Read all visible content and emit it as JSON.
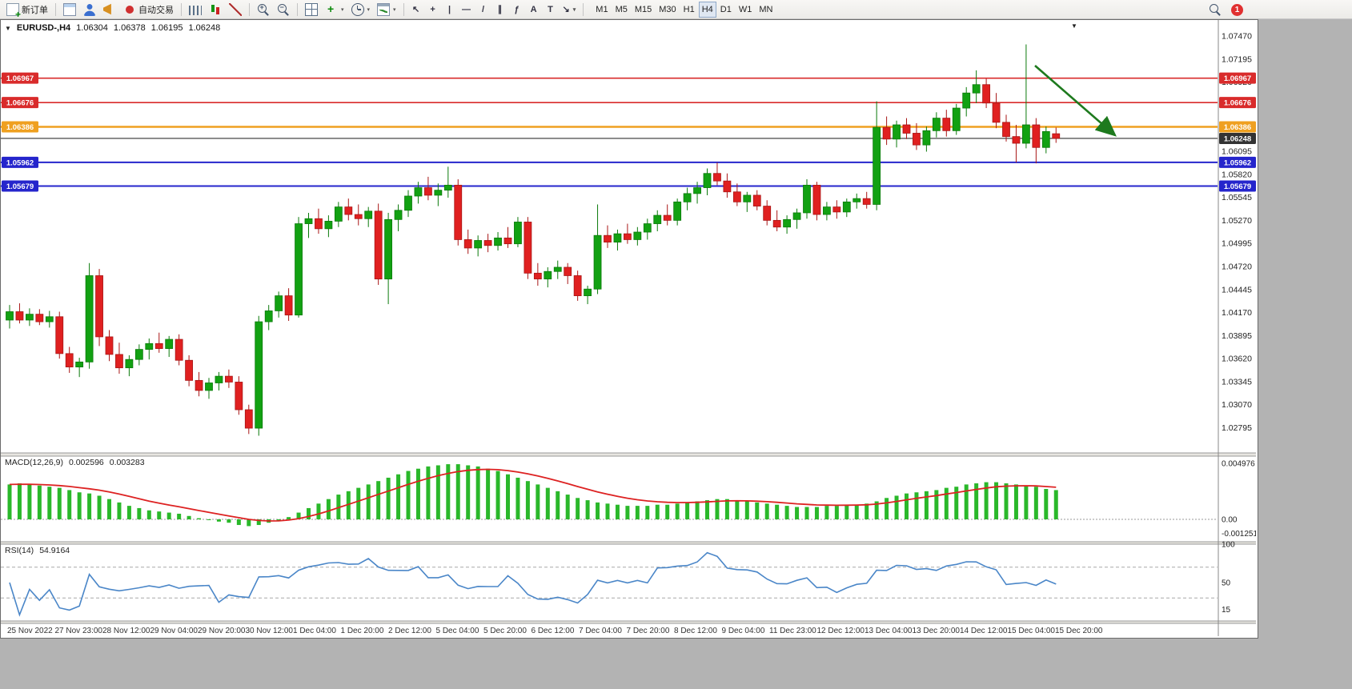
{
  "toolbar": {
    "new_order_label": "新订单",
    "autotrading_label": "自动交易",
    "drawing_tools": [
      {
        "name": "cursor",
        "glyph": "↖"
      },
      {
        "name": "crosshair",
        "glyph": "+"
      },
      {
        "name": "vertical-line",
        "glyph": "|"
      },
      {
        "name": "horizontal-line",
        "glyph": "—"
      },
      {
        "name": "trendline",
        "glyph": "/"
      },
      {
        "name": "channel",
        "glyph": "∥"
      },
      {
        "name": "fibonacci",
        "glyph": "ƒ"
      },
      {
        "name": "text",
        "glyph": "A"
      },
      {
        "name": "text-label",
        "glyph": "T"
      },
      {
        "name": "arrows",
        "glyph": "↘"
      }
    ],
    "timeframes": [
      "M1",
      "M5",
      "M15",
      "M30",
      "H1",
      "H4",
      "D1",
      "W1",
      "MN"
    ],
    "active_timeframe": "H4",
    "notification_count": "1"
  },
  "chart": {
    "title": "EURUSD-,H4",
    "ohlc": {
      "open": "1.06304",
      "high": "1.06378",
      "low": "1.06195",
      "close": "1.06248"
    },
    "colors": {
      "bull": "#12A112",
      "bull_border": "#0B7A0B",
      "bear": "#E02020",
      "bear_border": "#A81616",
      "macd_hist": "#2AB82A",
      "macd_signal": "#DD2222",
      "rsi_line": "#4A86C8",
      "arrow": "#1E7A1E",
      "badge_text": "#FFFFFF"
    },
    "price_axis": [
      "1.07470",
      "1.07195",
      "1.06920",
      "1.06645",
      "1.06370",
      "1.06095",
      "1.05820",
      "1.05545",
      "1.05270",
      "1.04995",
      "1.04720",
      "1.04445",
      "1.04170",
      "1.03895",
      "1.03620",
      "1.03345",
      "1.03070",
      "1.02795"
    ],
    "hlines": [
      {
        "label": "1.06967",
        "price": 1.06967,
        "color": "#D92B2B",
        "width": 1.6,
        "badges": "both"
      },
      {
        "label": "1.06676",
        "price": 1.06676,
        "color": "#D92B2B",
        "width": 1.6,
        "badges": "both"
      },
      {
        "label": "1.06386",
        "price": 1.06386,
        "color": "#EFA020",
        "width": 2.5,
        "badges": "both"
      },
      {
        "label": "1.06248",
        "price": 1.06248,
        "color": "#333333",
        "width": 1.2,
        "badges": "right"
      },
      {
        "label": "1.05962",
        "price": 1.05962,
        "color": "#2525CC",
        "width": 2,
        "badges": "both"
      },
      {
        "label": "1.05679",
        "price": 1.05679,
        "color": "#2525CC",
        "width": 2,
        "badges": "both"
      }
    ],
    "time_axis": [
      "25 Nov 2022",
      "27 Nov 23:00",
      "28 Nov 12:00",
      "29 Nov 04:00",
      "29 Nov 20:00",
      "30 Nov 12:00",
      "1 Dec 04:00",
      "1 Dec 20:00",
      "2 Dec 12:00",
      "5 Dec 04:00",
      "5 Dec 20:00",
      "6 Dec 12:00",
      "7 Dec 04:00",
      "7 Dec 20:00",
      "8 Dec 12:00",
      "9 Dec 04:00",
      "11 Dec 23:00",
      "12 Dec 12:00",
      "13 Dec 04:00",
      "13 Dec 20:00",
      "14 Dec 12:00",
      "15 Dec 04:00",
      "15 Dec 20:00"
    ]
  },
  "macd": {
    "label": "MACD(12,26,9)",
    "value_main": "0.002596",
    "value_signal": "0.003283",
    "axis": [
      {
        "label": "0.004976",
        "value": 0.004976
      },
      {
        "label": "0.00",
        "value": 0
      },
      {
        "label": "-0.001251",
        "value": -0.001251
      }
    ]
  },
  "rsi": {
    "label": "RSI(14)",
    "value": "54.9164",
    "axis": [
      {
        "label": "100",
        "value": 100
      },
      {
        "label": "50",
        "value": 50
      },
      {
        "label": "15",
        "value": 15
      }
    ],
    "levels": [
      70,
      30
    ]
  },
  "chart_data": {
    "type": "candlestick",
    "symbol": "EURUSD-",
    "timeframe": "H4",
    "price_range": [
      1.028,
      1.0747
    ],
    "current_quote": {
      "open": 1.06304,
      "high": 1.06378,
      "low": 1.06195,
      "close": 1.06248
    },
    "candles": [
      [
        1.0408,
        1.0426,
        1.0398,
        1.0418
      ],
      [
        1.0418,
        1.0428,
        1.0404,
        1.0408
      ],
      [
        1.0408,
        1.0422,
        1.0401,
        1.0415
      ],
      [
        1.0415,
        1.0421,
        1.0402,
        1.0406
      ],
      [
        1.0406,
        1.0419,
        1.0399,
        1.0412
      ],
      [
        1.0412,
        1.0418,
        1.0362,
        1.0368
      ],
      [
        1.0368,
        1.0376,
        1.0345,
        1.0352
      ],
      [
        1.0352,
        1.0363,
        1.034,
        1.0358
      ],
      [
        1.0358,
        1.0476,
        1.035,
        1.0461
      ],
      [
        1.0461,
        1.0469,
        1.0377,
        1.0388
      ],
      [
        1.0388,
        1.0396,
        1.0359,
        1.0367
      ],
      [
        1.0367,
        1.0381,
        1.0344,
        1.0351
      ],
      [
        1.0351,
        1.0366,
        1.0341,
        1.0361
      ],
      [
        1.0361,
        1.0379,
        1.0354,
        1.0373
      ],
      [
        1.0373,
        1.0386,
        1.0361,
        1.038
      ],
      [
        1.038,
        1.0393,
        1.0369,
        1.0374
      ],
      [
        1.0374,
        1.0389,
        1.0364,
        1.0385
      ],
      [
        1.0385,
        1.0391,
        1.0354,
        1.036
      ],
      [
        1.036,
        1.0366,
        1.0329,
        1.0336
      ],
      [
        1.0336,
        1.0346,
        1.0317,
        1.0324
      ],
      [
        1.0324,
        1.0339,
        1.0314,
        1.0333
      ],
      [
        1.0333,
        1.0346,
        1.0324,
        1.0341
      ],
      [
        1.0341,
        1.0349,
        1.0327,
        1.0334
      ],
      [
        1.0334,
        1.0341,
        1.0295,
        1.0301
      ],
      [
        1.0301,
        1.0307,
        1.0272,
        1.0279
      ],
      [
        1.0279,
        1.0413,
        1.027,
        1.0406
      ],
      [
        1.0406,
        1.0426,
        1.0396,
        1.0419
      ],
      [
        1.0419,
        1.0442,
        1.0411,
        1.0437
      ],
      [
        1.0437,
        1.0446,
        1.0407,
        1.0414
      ],
      [
        1.0414,
        1.0531,
        1.0411,
        1.0523
      ],
      [
        1.0523,
        1.0536,
        1.0506,
        1.0529
      ],
      [
        1.0529,
        1.0541,
        1.0511,
        1.0517
      ],
      [
        1.0517,
        1.0533,
        1.0507,
        1.0526
      ],
      [
        1.0526,
        1.0549,
        1.0519,
        1.0543
      ],
      [
        1.0543,
        1.0553,
        1.0527,
        1.0534
      ],
      [
        1.0534,
        1.0546,
        1.0521,
        1.0529
      ],
      [
        1.0529,
        1.0543,
        1.0519,
        1.0538
      ],
      [
        1.0538,
        1.0547,
        1.045,
        1.0457
      ],
      [
        1.0457,
        1.0536,
        1.0427,
        1.0528
      ],
      [
        1.0528,
        1.0546,
        1.0514,
        1.0539
      ],
      [
        1.0539,
        1.0563,
        1.0531,
        1.0556
      ],
      [
        1.0556,
        1.0573,
        1.0547,
        1.0566
      ],
      [
        1.0566,
        1.0579,
        1.0551,
        1.0557
      ],
      [
        1.0557,
        1.0571,
        1.0544,
        1.0563
      ],
      [
        1.0563,
        1.0591,
        1.0554,
        1.0569
      ],
      [
        1.0569,
        1.0576,
        1.0497,
        1.0504
      ],
      [
        1.0504,
        1.0516,
        1.0487,
        1.0494
      ],
      [
        1.0494,
        1.0509,
        1.0484,
        1.0503
      ],
      [
        1.0503,
        1.0511,
        1.0489,
        1.0497
      ],
      [
        1.0497,
        1.0513,
        1.0491,
        1.0506
      ],
      [
        1.0506,
        1.0519,
        1.0494,
        1.0499
      ],
      [
        1.0499,
        1.0531,
        1.0495,
        1.0525
      ],
      [
        1.0525,
        1.0531,
        1.0457,
        1.0464
      ],
      [
        1.0464,
        1.0476,
        1.0449,
        1.0457
      ],
      [
        1.0457,
        1.0471,
        1.0447,
        1.0466
      ],
      [
        1.0466,
        1.0479,
        1.0457,
        1.0471
      ],
      [
        1.0471,
        1.0476,
        1.0451,
        1.0461
      ],
      [
        1.0461,
        1.0467,
        1.0431,
        1.0437
      ],
      [
        1.0437,
        1.0449,
        1.0427,
        1.0445
      ],
      [
        1.0445,
        1.0546,
        1.0439,
        1.0509
      ],
      [
        1.0509,
        1.0521,
        1.0494,
        1.0501
      ],
      [
        1.0501,
        1.0516,
        1.0491,
        1.0511
      ],
      [
        1.0511,
        1.0523,
        1.0499,
        1.0504
      ],
      [
        1.0504,
        1.0519,
        1.0497,
        1.0513
      ],
      [
        1.0513,
        1.0529,
        1.0504,
        1.0523
      ],
      [
        1.0523,
        1.0539,
        1.0514,
        1.0533
      ],
      [
        1.0533,
        1.0546,
        1.0521,
        1.0527
      ],
      [
        1.0527,
        1.0553,
        1.0521,
        1.0549
      ],
      [
        1.0549,
        1.0566,
        1.0539,
        1.0559
      ],
      [
        1.0559,
        1.0573,
        1.0547,
        1.0566
      ],
      [
        1.0566,
        1.0589,
        1.0557,
        1.0583
      ],
      [
        1.0583,
        1.0596,
        1.0569,
        1.0574
      ],
      [
        1.0574,
        1.0583,
        1.0554,
        1.0561
      ],
      [
        1.0561,
        1.0571,
        1.0544,
        1.0549
      ],
      [
        1.0549,
        1.0561,
        1.0537,
        1.0557
      ],
      [
        1.0557,
        1.0563,
        1.0539,
        1.0544
      ],
      [
        1.0544,
        1.0551,
        1.0521,
        1.0527
      ],
      [
        1.0527,
        1.0539,
        1.0514,
        1.0519
      ],
      [
        1.0519,
        1.0533,
        1.0511,
        1.0528
      ],
      [
        1.0528,
        1.0541,
        1.0517,
        1.0536
      ],
      [
        1.0536,
        1.0576,
        1.0529,
        1.0569
      ],
      [
        1.0569,
        1.0573,
        1.0527,
        1.0534
      ],
      [
        1.0534,
        1.0549,
        1.0527,
        1.0543
      ],
      [
        1.0543,
        1.0551,
        1.0529,
        1.0537
      ],
      [
        1.0537,
        1.0553,
        1.0531,
        1.0549
      ],
      [
        1.0549,
        1.0559,
        1.0541,
        1.0553
      ],
      [
        1.0553,
        1.0561,
        1.0541,
        1.0546
      ],
      [
        1.0546,
        1.0669,
        1.0539,
        1.0638
      ],
      [
        1.0638,
        1.0651,
        1.0617,
        1.0624
      ],
      [
        1.0624,
        1.0646,
        1.0614,
        1.0641
      ],
      [
        1.0641,
        1.0649,
        1.0624,
        1.0631
      ],
      [
        1.0631,
        1.0643,
        1.0611,
        1.0617
      ],
      [
        1.0617,
        1.0639,
        1.0609,
        1.0634
      ],
      [
        1.0634,
        1.0656,
        1.0626,
        1.0649
      ],
      [
        1.0649,
        1.0659,
        1.0627,
        1.0634
      ],
      [
        1.0634,
        1.0666,
        1.0629,
        1.0661
      ],
      [
        1.0661,
        1.0686,
        1.0651,
        1.0679
      ],
      [
        1.0679,
        1.0706,
        1.0667,
        1.0689
      ],
      [
        1.0689,
        1.0696,
        1.0661,
        1.0667
      ],
      [
        1.0667,
        1.0679,
        1.0637,
        1.0644
      ],
      [
        1.0644,
        1.0653,
        1.0621,
        1.0627
      ],
      [
        1.0627,
        1.0641,
        1.0596,
        1.0619
      ],
      [
        1.0619,
        1.0737,
        1.0613,
        1.0641
      ],
      [
        1.0641,
        1.0649,
        1.0595,
        1.0614
      ],
      [
        1.0614,
        1.0639,
        1.0607,
        1.0633
      ],
      [
        1.06304,
        1.06378,
        1.06195,
        1.06248
      ]
    ],
    "macd_hist": [
      0.0031,
      0.0032,
      0.0031,
      0.003,
      0.0029,
      0.0028,
      0.0026,
      0.0024,
      0.0023,
      0.0021,
      0.0018,
      0.0015,
      0.0012,
      0.001,
      0.0008,
      0.0007,
      0.0006,
      0.0005,
      0.0003,
      0.0001,
      0,
      -0.0002,
      -0.0003,
      -0.0005,
      -0.0006,
      -0.0005,
      -0.0003,
      -0.0001,
      0.0002,
      0.0006,
      0.001,
      0.0014,
      0.0018,
      0.0022,
      0.0025,
      0.0028,
      0.0031,
      0.0034,
      0.0037,
      0.004,
      0.0043,
      0.0045,
      0.0047,
      0.0048,
      0.0049,
      0.0049,
      0.0048,
      0.0047,
      0.0045,
      0.0043,
      0.004,
      0.0037,
      0.0034,
      0.0031,
      0.0028,
      0.0025,
      0.0022,
      0.0019,
      0.0017,
      0.0015,
      0.0014,
      0.0013,
      0.0012,
      0.0012,
      0.0012,
      0.0013,
      0.0013,
      0.0014,
      0.0015,
      0.0016,
      0.0017,
      0.0018,
      0.0018,
      0.0017,
      0.0016,
      0.0015,
      0.0014,
      0.0013,
      0.0012,
      0.0011,
      0.0011,
      0.0011,
      0.0012,
      0.0012,
      0.0013,
      0.0013,
      0.0014,
      0.0016,
      0.0019,
      0.0021,
      0.0023,
      0.0024,
      0.0025,
      0.0026,
      0.0028,
      0.0029,
      0.0031,
      0.0032,
      0.0033,
      0.0033,
      0.0032,
      0.0031,
      0.003,
      0.0029,
      0.0027,
      0.0026
    ],
    "macd_current": 0.002596,
    "macd_signal_current": 0.003283,
    "rsi_current": 54.9164
  }
}
